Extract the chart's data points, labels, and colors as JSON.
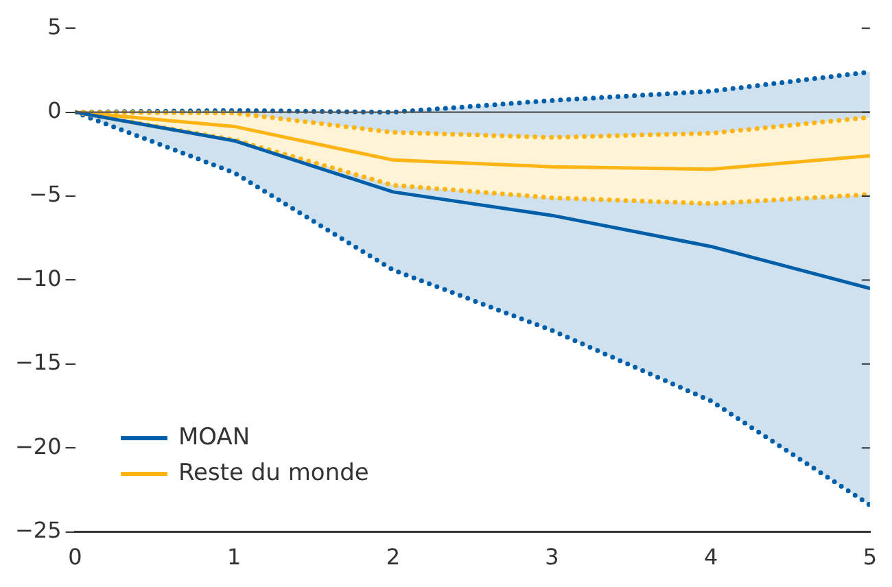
{
  "chart_data": {
    "type": "line",
    "x": [
      0,
      1,
      2,
      3,
      4,
      5
    ],
    "xlim": [
      0,
      5
    ],
    "xticks": [
      0,
      1,
      2,
      3,
      4,
      5
    ],
    "ylim": [
      -25,
      5
    ],
    "yticks": [
      -25,
      -20,
      -15,
      -10,
      -5,
      0,
      5
    ],
    "grid": false,
    "legend": "bottom left",
    "line_style": "solid",
    "marker": "none",
    "ref_lines": [
      {
        "axis": "y",
        "value": 0,
        "color": "#555555"
      }
    ],
    "series": [
      {
        "name": "MOAN",
        "color": "#005fa8",
        "values": [
          0,
          -1.7,
          -4.75,
          -6.15,
          -8.0,
          -10.5
        ],
        "lower": [
          0,
          -3.6,
          -9.4,
          -13.0,
          -17.2,
          -23.4
        ],
        "upper": [
          0,
          0.1,
          0,
          0.7,
          1.25,
          2.4
        ]
      },
      {
        "name": "Reste du monde",
        "color": "#fdb515",
        "values": [
          0,
          -0.85,
          -2.85,
          -3.25,
          -3.4,
          -2.6
        ],
        "lower": [
          0,
          -1.65,
          -4.35,
          -5.1,
          -5.45,
          -4.9
        ],
        "upper": [
          0,
          -0.05,
          -1.2,
          -1.5,
          -1.25,
          -0.3
        ]
      },
      {
        "color": "#005fa8",
        "line_style": "dotted",
        "values": [
          0,
          -3.6,
          -9.4,
          -13.0,
          -17.2,
          -23.4
        ]
      },
      {
        "color": "#005fa8",
        "line_style": "dotted",
        "values": [
          0,
          0.1,
          0,
          0.7,
          1.25,
          2.4
        ]
      },
      {
        "color": "#fdb515",
        "line_style": "dotted",
        "values": [
          0,
          -1.65,
          -4.35,
          -5.1,
          -5.45,
          -4.9
        ]
      },
      {
        "color": "#fdb515",
        "line_style": "dotted",
        "values": [
          0,
          -0.05,
          -1.2,
          -1.5,
          -1.25,
          -0.3
        ]
      }
    ]
  }
}
